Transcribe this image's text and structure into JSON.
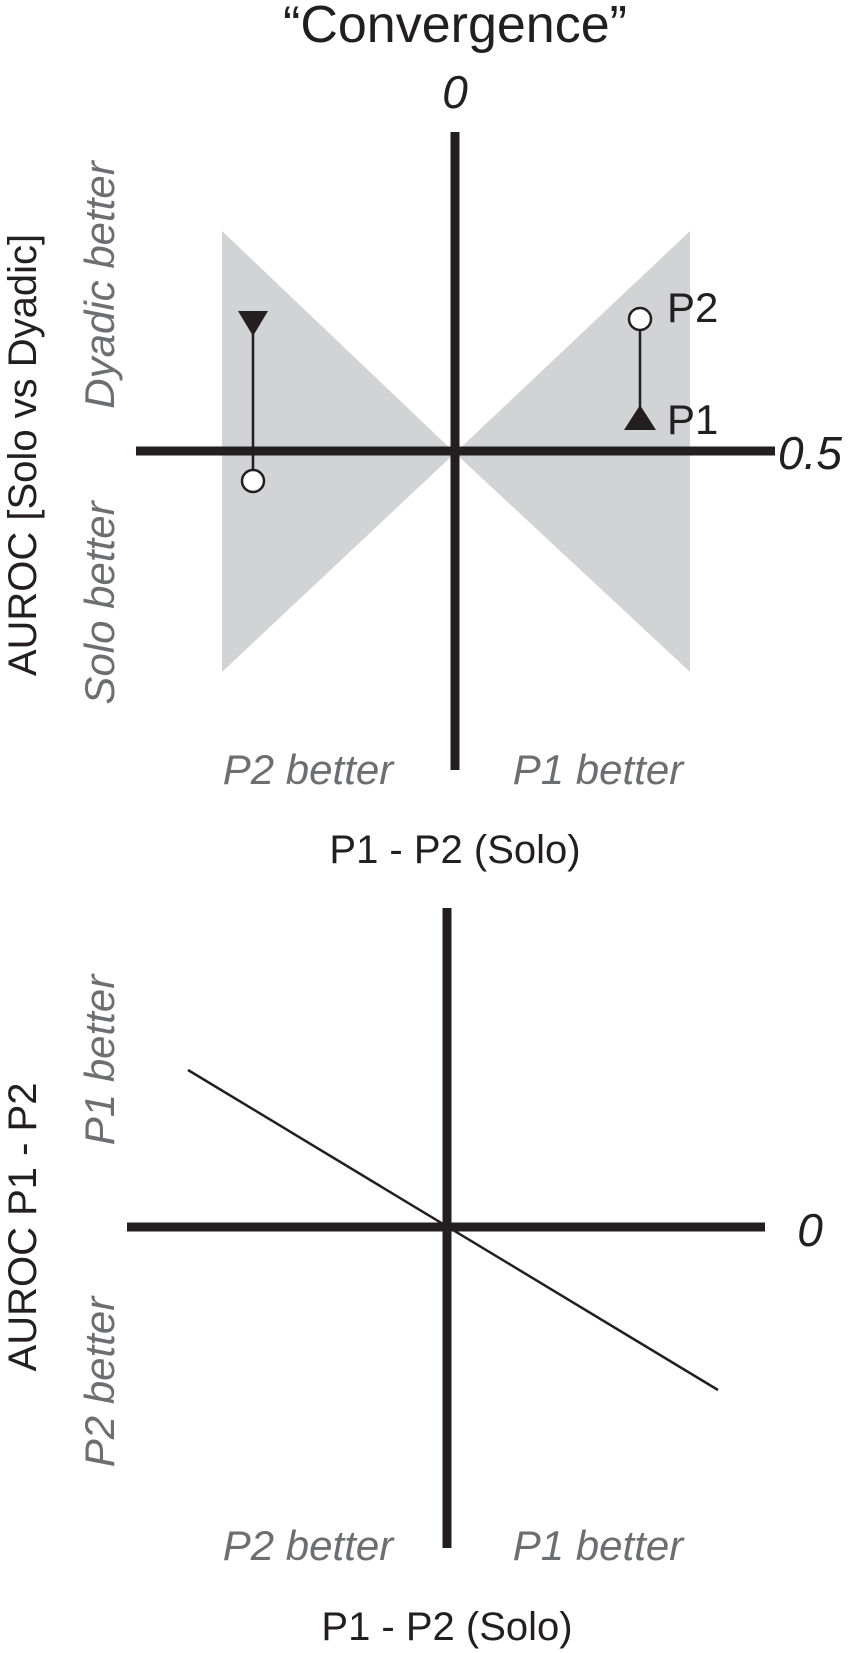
{
  "figure": {
    "title": "“Convergence”"
  },
  "top_panel": {
    "y_axis_title": "AUROC [Solo vs Dyadic]",
    "x_axis_title": "P1 - P2 (Solo)",
    "y_tick_top": "0",
    "x_tick_right": "0.5",
    "region_dyadic_better": "Dyadic better",
    "region_solo_better": "Solo better",
    "region_p2_better": "P2 better",
    "region_p1_better": "P1 better",
    "point_label_p2": "P2",
    "point_label_p1": "P1",
    "shade_color": "#d1d3d4",
    "ink_color": "#231f20"
  },
  "bottom_panel": {
    "y_axis_title": "AUROC P1 - P2",
    "x_axis_title": "P1 - P2 (Solo)",
    "x_tick_right": "0",
    "region_p1_better_y": "P1 better",
    "region_p2_better_y": "P2 better",
    "region_p2_better_x": "P2 better",
    "region_p1_better_x": "P1 better"
  }
}
